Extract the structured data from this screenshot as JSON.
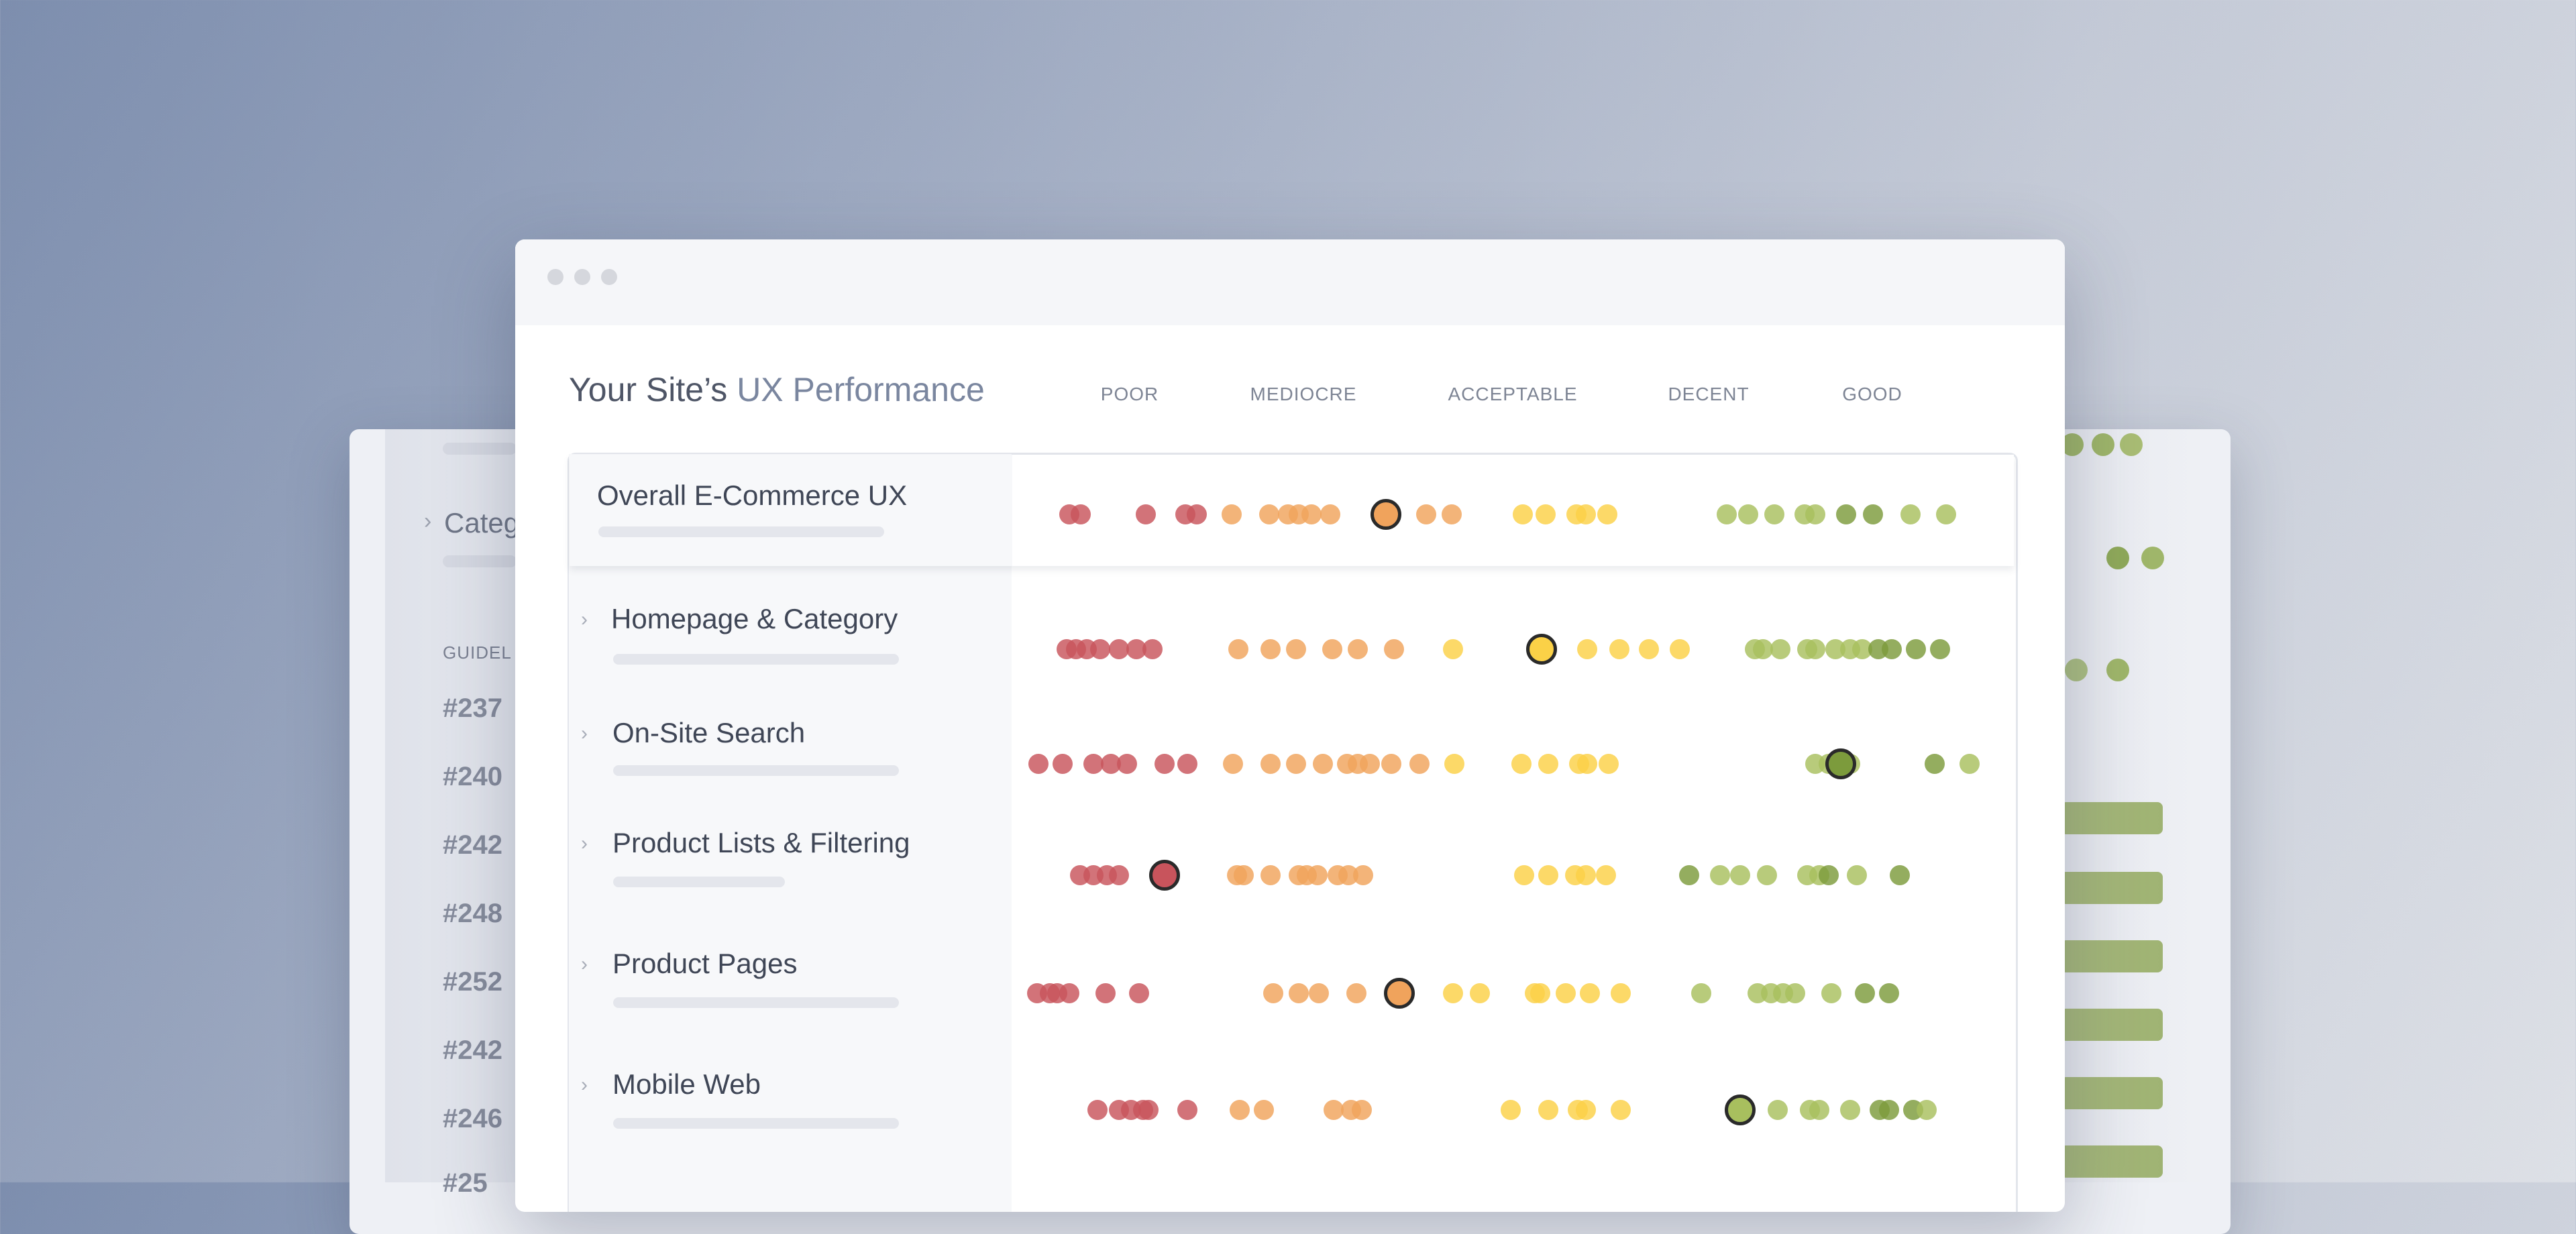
{
  "window": {
    "heading_prefix": "Your Site’s",
    "heading_accent": "UX Performance",
    "columns": [
      "POOR",
      "MEDIOCRE",
      "ACCEPTABLE",
      "DECENT",
      "GOOD"
    ]
  },
  "rows": [
    {
      "label": "Overall E-Commerce UX",
      "highlight_rating": "MEDIOCRE"
    },
    {
      "label": "Homepage & Category",
      "highlight_rating": "ACCEPTABLE"
    },
    {
      "label": "On-Site Search",
      "highlight_rating": "GOOD"
    },
    {
      "label": "Product Lists & Filtering",
      "highlight_rating": "POOR"
    },
    {
      "label": "Product Pages",
      "highlight_rating": "MEDIOCRE"
    },
    {
      "label": "Mobile Web",
      "highlight_rating": "DECENT"
    }
  ],
  "background_window": {
    "nav_item": "Categ",
    "guidelines_label": "GUIDEL",
    "ids": [
      "#237",
      "#240",
      "#242",
      "#248",
      "#252",
      "#242",
      "#246",
      "#25"
    ]
  },
  "colors": {
    "poor": "#c8545c",
    "mediocre": "#f0a35c",
    "acceptable": "#fbd147",
    "decent": "#a8bf5e",
    "good": "#7c9b3c",
    "highlight_border": "#2a2a2a"
  }
}
